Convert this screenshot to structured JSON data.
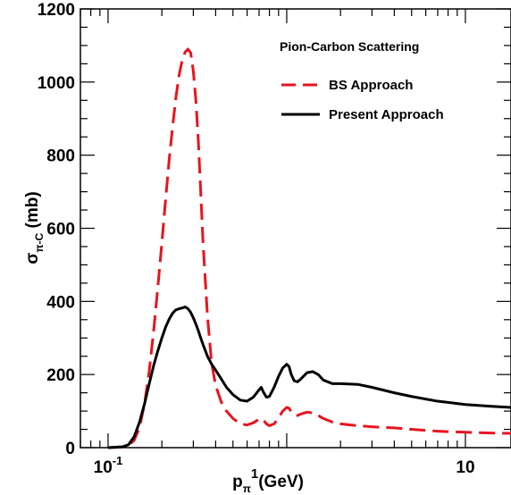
{
  "chart_data": {
    "type": "line",
    "x_scale": "log",
    "xlim": [
      0.07,
      18
    ],
    "ylim": [
      0,
      1200
    ],
    "x_ticks": [
      {
        "value": 0.1,
        "base": "10",
        "exp": "-1"
      },
      {
        "value": 10,
        "base": "10",
        "exp": ""
      }
    ],
    "y_ticks": [
      0,
      200,
      400,
      600,
      800,
      1000,
      1200
    ],
    "xlabel": {
      "main": "p",
      "sub": "π",
      "sup": "1",
      "rest": "(GeV)"
    },
    "ylabel": {
      "main": "σ",
      "sub": "π-C",
      "rest": " (mb)"
    },
    "legend": {
      "title": "Pion-Carbon Scattering",
      "placement": "top-right",
      "entries": [
        {
          "label": "BS Approach",
          "series": 0
        },
        {
          "label": "Present Approach",
          "series": 1
        }
      ]
    },
    "series": [
      {
        "name": "BS Approach",
        "color": "#e8141e",
        "dash": "dashed",
        "x": [
          0.1,
          0.12,
          0.13,
          0.14,
          0.15,
          0.16,
          0.17,
          0.18,
          0.19,
          0.2,
          0.21,
          0.22,
          0.23,
          0.24,
          0.25,
          0.26,
          0.27,
          0.28,
          0.29,
          0.3,
          0.31,
          0.32,
          0.33,
          0.34,
          0.36,
          0.38,
          0.4,
          0.43,
          0.46,
          0.5,
          0.55,
          0.6,
          0.65,
          0.7,
          0.72,
          0.74,
          0.77,
          0.8,
          0.85,
          0.9,
          0.95,
          1.0,
          1.03,
          1.06,
          1.1,
          1.15,
          1.2,
          1.3,
          1.4,
          1.5,
          1.6,
          1.8,
          2.0,
          2.5,
          3.0,
          4.0,
          5.0,
          7.0,
          10.0,
          14.0,
          18.0
        ],
        "y": [
          0,
          2,
          6,
          20,
          55,
          120,
          210,
          320,
          440,
          560,
          680,
          790,
          880,
          960,
          1020,
          1060,
          1082,
          1090,
          1080,
          1030,
          950,
          840,
          700,
          560,
          360,
          230,
          170,
          125,
          100,
          80,
          65,
          62,
          68,
          78,
          80,
          75,
          65,
          60,
          65,
          82,
          100,
          110,
          108,
          98,
          90,
          88,
          92,
          97,
          95,
          88,
          80,
          70,
          65,
          60,
          57,
          54,
          50,
          45,
          42,
          40,
          39
        ]
      },
      {
        "name": "Present Approach",
        "color": "#000000",
        "dash": "solid",
        "x": [
          0.1,
          0.12,
          0.13,
          0.14,
          0.15,
          0.16,
          0.17,
          0.18,
          0.19,
          0.2,
          0.21,
          0.22,
          0.23,
          0.24,
          0.25,
          0.26,
          0.27,
          0.28,
          0.29,
          0.3,
          0.31,
          0.32,
          0.33,
          0.34,
          0.36,
          0.38,
          0.4,
          0.43,
          0.46,
          0.5,
          0.55,
          0.6,
          0.65,
          0.7,
          0.72,
          0.74,
          0.77,
          0.8,
          0.85,
          0.9,
          0.95,
          1.0,
          1.03,
          1.06,
          1.1,
          1.15,
          1.2,
          1.3,
          1.4,
          1.5,
          1.6,
          1.8,
          2.0,
          2.5,
          3.0,
          4.0,
          5.0,
          7.0,
          10.0,
          14.0,
          18.0
        ],
        "y": [
          0,
          2,
          8,
          30,
          70,
          120,
          175,
          225,
          265,
          300,
          330,
          352,
          368,
          377,
          380,
          382,
          385,
          380,
          370,
          355,
          338,
          320,
          300,
          282,
          250,
          228,
          212,
          188,
          165,
          145,
          130,
          127,
          138,
          158,
          165,
          152,
          138,
          140,
          165,
          195,
          218,
          228,
          222,
          200,
          183,
          180,
          188,
          205,
          208,
          200,
          185,
          175,
          175,
          173,
          165,
          150,
          140,
          127,
          118,
          113,
          110
        ]
      }
    ],
    "grid": false
  }
}
